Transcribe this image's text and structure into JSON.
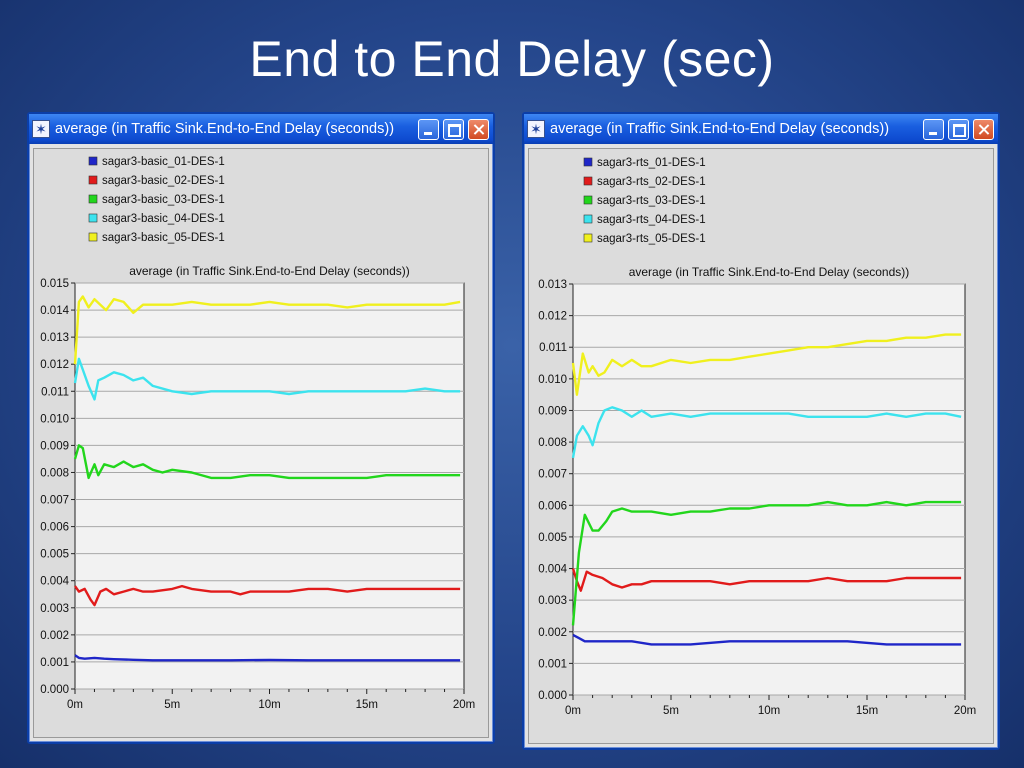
{
  "slide": {
    "title": "End to End Delay (sec)"
  },
  "windows": [
    {
      "title": "average (in Traffic Sink.End-to-End Delay (seconds))",
      "buttons": {
        "minimize": "minimize",
        "maximize": "maximize",
        "close": "close"
      }
    },
    {
      "title": "average (in Traffic Sink.End-to-End Delay (seconds))",
      "buttons": {
        "minimize": "minimize",
        "maximize": "maximize",
        "close": "close"
      }
    }
  ],
  "colors": {
    "blue": "#1f26c8",
    "red": "#e11b1b",
    "green": "#22d61c",
    "cyan": "#3ce3ee",
    "yellow": "#f0f01e"
  },
  "chart_data": [
    {
      "type": "line",
      "title": "average (in Traffic Sink.End-to-End Delay (seconds))",
      "xlabel": "",
      "ylabel": "",
      "xlim": [
        0,
        20
      ],
      "ylim": [
        0,
        0.015
      ],
      "x_unit": "minutes",
      "yticks": [
        "0.000",
        "0.001",
        "0.002",
        "0.003",
        "0.004",
        "0.005",
        "0.006",
        "0.007",
        "0.008",
        "0.009",
        "0.010",
        "0.011",
        "0.012",
        "0.013",
        "0.014",
        "0.015"
      ],
      "xticks": [
        {
          "v": 0,
          "label": "0m"
        },
        {
          "v": 5,
          "label": "5m"
        },
        {
          "v": 10,
          "label": "10m"
        },
        {
          "v": 15,
          "label": "15m"
        },
        {
          "v": 20,
          "label": "20m"
        }
      ],
      "grid": true,
      "legend_position": "top-left",
      "series": [
        {
          "name": "sagar3-basic_01-DES-1",
          "color": "#1f26c8",
          "x": [
            0,
            0.2,
            0.5,
            1,
            1.5,
            2,
            3,
            4,
            5,
            6,
            8,
            10,
            12,
            14,
            16,
            18,
            19.8
          ],
          "y": [
            0.00125,
            0.00115,
            0.00112,
            0.00115,
            0.00112,
            0.0011,
            0.00108,
            0.00106,
            0.00106,
            0.00106,
            0.00106,
            0.00107,
            0.00106,
            0.00106,
            0.00106,
            0.00106,
            0.00106
          ]
        },
        {
          "name": "sagar3-basic_02-DES-1",
          "color": "#e11b1b",
          "x": [
            0,
            0.2,
            0.5,
            0.8,
            1,
            1.3,
            1.6,
            2,
            2.5,
            3,
            3.5,
            4,
            5,
            5.5,
            6,
            7,
            8,
            8.5,
            9,
            10,
            11,
            12,
            13,
            14,
            15,
            16,
            17,
            18,
            19,
            19.8
          ],
          "y": [
            0.0038,
            0.0036,
            0.0037,
            0.0033,
            0.0031,
            0.0036,
            0.0037,
            0.0035,
            0.0036,
            0.0037,
            0.0036,
            0.0036,
            0.0037,
            0.0038,
            0.0037,
            0.0036,
            0.0036,
            0.0035,
            0.0036,
            0.0036,
            0.0036,
            0.0037,
            0.0037,
            0.0036,
            0.0037,
            0.0037,
            0.0037,
            0.0037,
            0.0037,
            0.0037
          ]
        },
        {
          "name": "sagar3-basic_03-DES-1",
          "color": "#22d61c",
          "x": [
            0,
            0.2,
            0.4,
            0.7,
            1,
            1.2,
            1.5,
            2,
            2.5,
            3,
            3.5,
            4,
            4.5,
            5,
            6,
            7,
            8,
            9,
            10,
            11,
            12,
            13,
            14,
            15,
            16,
            17,
            18,
            19,
            19.8
          ],
          "y": [
            0.0085,
            0.009,
            0.0089,
            0.0078,
            0.0083,
            0.0079,
            0.0083,
            0.0082,
            0.0084,
            0.0082,
            0.0083,
            0.0081,
            0.008,
            0.0081,
            0.008,
            0.0078,
            0.0078,
            0.0079,
            0.0079,
            0.0078,
            0.0078,
            0.0078,
            0.0078,
            0.0078,
            0.0079,
            0.0079,
            0.0079,
            0.0079,
            0.0079
          ]
        },
        {
          "name": "sagar3-basic_04-DES-1",
          "color": "#3ce3ee",
          "x": [
            0,
            0.2,
            0.4,
            0.7,
            1,
            1.2,
            1.5,
            2,
            2.5,
            3,
            3.5,
            4,
            5,
            6,
            7,
            8,
            9,
            10,
            11,
            12,
            13,
            14,
            15,
            16,
            17,
            18,
            19,
            19.8
          ],
          "y": [
            0.0113,
            0.0122,
            0.0118,
            0.0112,
            0.0107,
            0.0114,
            0.0115,
            0.0117,
            0.0116,
            0.0114,
            0.0115,
            0.0112,
            0.011,
            0.0109,
            0.011,
            0.011,
            0.011,
            0.011,
            0.0109,
            0.011,
            0.011,
            0.011,
            0.011,
            0.011,
            0.011,
            0.0111,
            0.011,
            0.011
          ]
        },
        {
          "name": "sagar3-basic_05-DES-1",
          "color": "#f0f01e",
          "x": [
            0,
            0.2,
            0.4,
            0.7,
            1,
            1.3,
            1.6,
            2,
            2.5,
            3,
            3.5,
            4,
            5,
            6,
            7,
            8,
            9,
            10,
            11,
            12,
            13,
            14,
            15,
            16,
            17,
            18,
            19,
            19.8
          ],
          "y": [
            0.012,
            0.0143,
            0.0145,
            0.0141,
            0.0144,
            0.0142,
            0.014,
            0.0144,
            0.0143,
            0.0139,
            0.0142,
            0.0142,
            0.0142,
            0.0143,
            0.0142,
            0.0142,
            0.0142,
            0.0143,
            0.0142,
            0.0142,
            0.0142,
            0.0141,
            0.0142,
            0.0142,
            0.0142,
            0.0142,
            0.0142,
            0.0143
          ]
        }
      ]
    },
    {
      "type": "line",
      "title": "average (in Traffic Sink.End-to-End Delay (seconds))",
      "xlabel": "",
      "ylabel": "",
      "xlim": [
        0,
        20
      ],
      "ylim": [
        0,
        0.013
      ],
      "x_unit": "minutes",
      "yticks": [
        "0.000",
        "0.001",
        "0.002",
        "0.003",
        "0.004",
        "0.005",
        "0.006",
        "0.007",
        "0.008",
        "0.009",
        "0.010",
        "0.011",
        "0.012",
        "0.013"
      ],
      "xticks": [
        {
          "v": 0,
          "label": "0m"
        },
        {
          "v": 5,
          "label": "5m"
        },
        {
          "v": 10,
          "label": "10m"
        },
        {
          "v": 15,
          "label": "15m"
        },
        {
          "v": 20,
          "label": "20m"
        }
      ],
      "grid": true,
      "legend_position": "top-left",
      "series": [
        {
          "name": "sagar3-rts_01-DES-1",
          "color": "#1f26c8",
          "x": [
            0,
            0.3,
            0.6,
            1,
            1.5,
            2,
            3,
            4,
            5,
            6,
            8,
            10,
            12,
            14,
            16,
            18,
            19.8
          ],
          "y": [
            0.0019,
            0.0018,
            0.0017,
            0.0017,
            0.0017,
            0.0017,
            0.0017,
            0.0016,
            0.0016,
            0.0016,
            0.0017,
            0.0017,
            0.0017,
            0.0017,
            0.0016,
            0.0016,
            0.0016
          ]
        },
        {
          "name": "sagar3-rts_02-DES-1",
          "color": "#e11b1b",
          "x": [
            0,
            0.2,
            0.4,
            0.7,
            1,
            1.5,
            2,
            2.5,
            3,
            3.5,
            4,
            5,
            6,
            7,
            8,
            9,
            10,
            11,
            12,
            13,
            14,
            15,
            16,
            17,
            18,
            19,
            19.8
          ],
          "y": [
            0.004,
            0.0036,
            0.0033,
            0.0039,
            0.0038,
            0.0037,
            0.0035,
            0.0034,
            0.0035,
            0.0035,
            0.0036,
            0.0036,
            0.0036,
            0.0036,
            0.0035,
            0.0036,
            0.0036,
            0.0036,
            0.0036,
            0.0037,
            0.0036,
            0.0036,
            0.0036,
            0.0037,
            0.0037,
            0.0037,
            0.0037
          ]
        },
        {
          "name": "sagar3-rts_03-DES-1",
          "color": "#22d61c",
          "x": [
            0,
            0.3,
            0.6,
            1,
            1.3,
            1.7,
            2,
            2.5,
            3,
            3.5,
            4,
            5,
            6,
            7,
            8,
            9,
            10,
            11,
            12,
            13,
            14,
            15,
            16,
            17,
            18,
            19,
            19.8
          ],
          "y": [
            0.0022,
            0.0045,
            0.0057,
            0.0052,
            0.0052,
            0.0055,
            0.0058,
            0.0059,
            0.0058,
            0.0058,
            0.0058,
            0.0057,
            0.0058,
            0.0058,
            0.0059,
            0.0059,
            0.006,
            0.006,
            0.006,
            0.0061,
            0.006,
            0.006,
            0.0061,
            0.006,
            0.0061,
            0.0061,
            0.0061
          ]
        },
        {
          "name": "sagar3-rts_04-DES-1",
          "color": "#3ce3ee",
          "x": [
            0,
            0.2,
            0.5,
            0.8,
            1,
            1.3,
            1.6,
            2,
            2.5,
            3,
            3.5,
            4,
            5,
            6,
            7,
            8,
            9,
            10,
            11,
            12,
            13,
            14,
            15,
            16,
            17,
            18,
            19,
            19.8
          ],
          "y": [
            0.0075,
            0.0082,
            0.0085,
            0.0082,
            0.0079,
            0.0086,
            0.009,
            0.0091,
            0.009,
            0.0088,
            0.009,
            0.0088,
            0.0089,
            0.0088,
            0.0089,
            0.0089,
            0.0089,
            0.0089,
            0.0089,
            0.0088,
            0.0088,
            0.0088,
            0.0088,
            0.0089,
            0.0088,
            0.0089,
            0.0089,
            0.0088
          ]
        },
        {
          "name": "sagar3-rts_05-DES-1",
          "color": "#f0f01e",
          "x": [
            0,
            0.2,
            0.5,
            0.8,
            1,
            1.3,
            1.6,
            2,
            2.5,
            3,
            3.5,
            4,
            5,
            6,
            7,
            8,
            9,
            10,
            11,
            12,
            13,
            14,
            15,
            16,
            17,
            18,
            19,
            19.8
          ],
          "y": [
            0.0105,
            0.0095,
            0.0108,
            0.0102,
            0.0104,
            0.0101,
            0.0102,
            0.0106,
            0.0104,
            0.0106,
            0.0104,
            0.0104,
            0.0106,
            0.0105,
            0.0106,
            0.0106,
            0.0107,
            0.0108,
            0.0109,
            0.011,
            0.011,
            0.0111,
            0.0112,
            0.0112,
            0.0113,
            0.0113,
            0.0114,
            0.0114
          ]
        }
      ]
    }
  ]
}
